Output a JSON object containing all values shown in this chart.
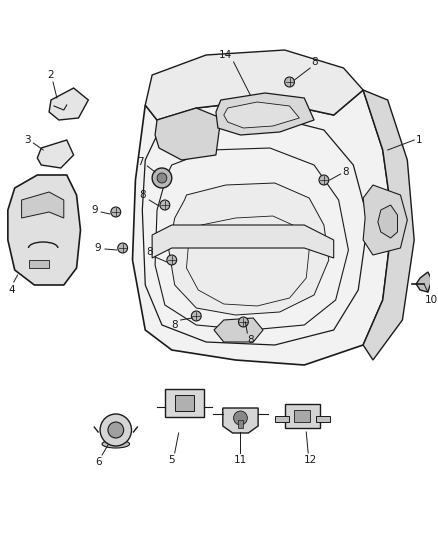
{
  "bg_color": "#ffffff",
  "line_color": "#1a1a1a",
  "fig_width": 4.38,
  "fig_height": 5.33,
  "dpi": 100,
  "label_fontsize": 7.5,
  "panel_fill": "#f0f0f0",
  "panel_fill2": "#e8e8e8",
  "part_fill": "#e0e0e0",
  "screw_fill": "#c8c8c8"
}
